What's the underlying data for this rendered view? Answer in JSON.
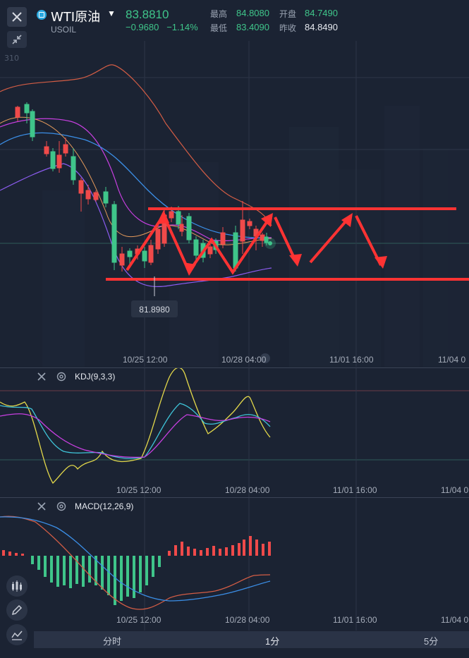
{
  "header": {
    "symbol_name": "WTI原油",
    "symbol_code": "USOIL",
    "price": "83.8810",
    "change": "−0.9680",
    "change_pct": "−1.14%",
    "stats": {
      "high_label": "最高",
      "high": "84.8080",
      "open_label": "开盘",
      "open": "84.7490",
      "low_label": "最低",
      "low": "83.4090",
      "prev_label": "昨收",
      "prev_close": "84.8490"
    },
    "scale_stub": "310"
  },
  "main_chart": {
    "low_marker": "81.8980",
    "time_labels": [
      "10/25 12:00",
      "10/28 04:00",
      "11/01 16:00",
      "11/04 0"
    ]
  },
  "kdj": {
    "label": "KDJ(9,3,3)",
    "time_labels": [
      "10/25 12:00",
      "10/28 04:00",
      "11/01 16:00",
      "11/04 0"
    ]
  },
  "macd": {
    "label": "MACD(12,26,9)",
    "time_labels": [
      "10/25 12:00",
      "10/28 04:00",
      "11/01 16:00",
      "11/04 0"
    ]
  },
  "timeframes": {
    "items": [
      "分时",
      "1分",
      "5分"
    ],
    "active": "1分"
  },
  "icons": [
    "close-icon",
    "shrink-icon",
    "caret-down-icon",
    "candles-icon",
    "pencil-icon",
    "indicator-icon",
    "gear-icon"
  ],
  "colors": {
    "up_green": "#3fc58a",
    "down_red": "#f04a4a",
    "arrow_red": "#ff3333",
    "bg": "#1b2333"
  }
}
